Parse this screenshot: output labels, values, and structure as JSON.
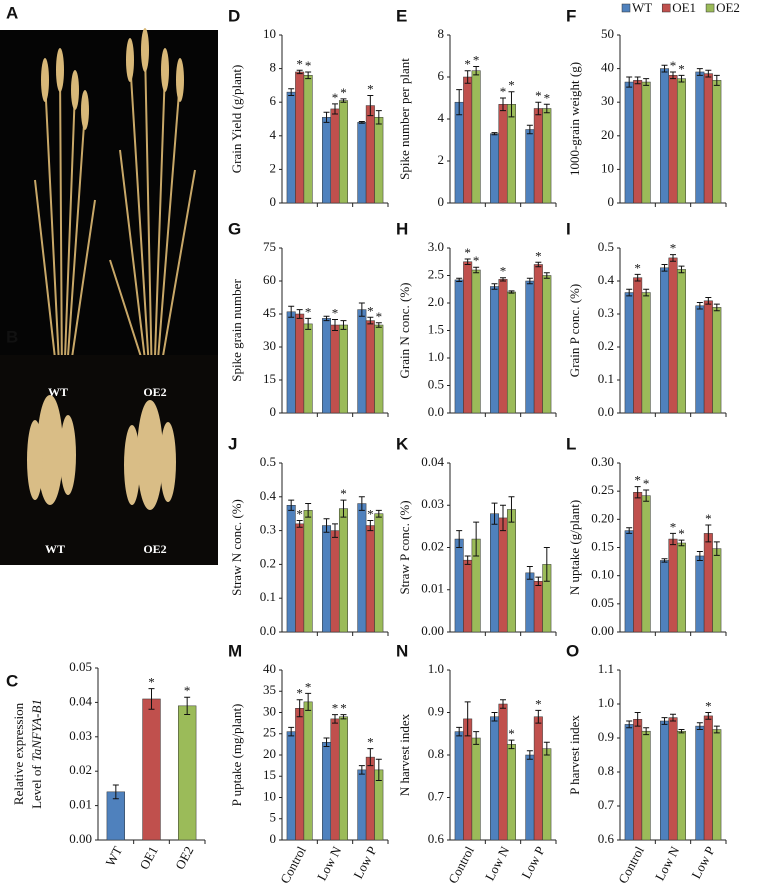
{
  "legend": {
    "position": "top-right",
    "entries": [
      {
        "name": "WT",
        "color": "#4f81bd"
      },
      {
        "name": "OE1",
        "color": "#c0504d"
      },
      {
        "name": "OE2",
        "color": "#9bbb59"
      }
    ]
  },
  "photos": [
    {
      "label": "A",
      "captions": [
        "WT",
        "OE2"
      ]
    },
    {
      "label": "B",
      "captions": [
        "WT",
        "OE2"
      ]
    }
  ],
  "chart_data": [
    {
      "type": "bar",
      "label": "C",
      "ylabel": [
        "Relative expression",
        "Level of",
        "TaNFYA-B1"
      ],
      "categories": [
        "WT",
        "OE1",
        "OE2"
      ],
      "colors": [
        "#4f81bd",
        "#c0504d",
        "#9bbb59"
      ],
      "values": [
        0.014,
        0.041,
        0.039
      ],
      "errors": [
        0.002,
        0.003,
        0.0025
      ],
      "markers": [
        null,
        "*",
        "*"
      ],
      "ylim": [
        0,
        0.05
      ],
      "yticks": [
        {
          "value": 0,
          "label": "0.00"
        },
        0.01,
        0.02,
        0.03,
        0.04,
        0.05
      ]
    },
    {
      "type": "grouped-bar",
      "label": "D",
      "ylabel": "Grain Yield (g/plant)",
      "categories": [
        null,
        null,
        null
      ],
      "ylim": [
        0,
        10
      ],
      "yticks": [
        0,
        2,
        4,
        6,
        8,
        10
      ],
      "series": [
        {
          "values": [
            6.6,
            5.1,
            4.8
          ],
          "errors": [
            0.2,
            0.3,
            0.05
          ],
          "markers": [
            null,
            null,
            null
          ]
        },
        {
          "values": [
            7.8,
            5.6,
            5.8
          ],
          "errors": [
            0.1,
            0.3,
            0.6
          ],
          "markers": [
            "*",
            "*",
            "*"
          ]
        },
        {
          "values": [
            7.6,
            6.1,
            5.1
          ],
          "errors": [
            0.2,
            0.1,
            0.4
          ],
          "markers": [
            "*",
            "*",
            null
          ]
        }
      ]
    },
    {
      "type": "grouped-bar",
      "label": "E",
      "ylabel": "Spike number per plant",
      "categories": [
        null,
        null,
        null
      ],
      "ylim": [
        0,
        8
      ],
      "yticks": [
        0,
        2,
        4,
        6,
        8
      ],
      "series": [
        {
          "values": [
            4.8,
            3.3,
            3.5
          ],
          "errors": [
            0.6,
            0.05,
            0.2
          ],
          "markers": [
            null,
            null,
            null
          ]
        },
        {
          "values": [
            6.0,
            4.7,
            4.5
          ],
          "errors": [
            0.3,
            0.3,
            0.3
          ],
          "markers": [
            "*",
            "*",
            "*"
          ]
        },
        {
          "values": [
            6.3,
            4.7,
            4.5
          ],
          "errors": [
            0.2,
            0.6,
            0.2
          ],
          "markers": [
            "*",
            "*",
            "*"
          ]
        }
      ]
    },
    {
      "type": "grouped-bar",
      "label": "F",
      "ylabel": "1000-grain weight (g)",
      "categories": [
        null,
        null,
        null
      ],
      "ylim": [
        0,
        50
      ],
      "yticks": [
        0,
        10,
        20,
        30,
        40,
        50
      ],
      "series": [
        {
          "values": [
            36,
            40,
            39
          ],
          "errors": [
            1.5,
            1,
            1
          ],
          "markers": [
            null,
            null,
            null
          ]
        },
        {
          "values": [
            36.5,
            38,
            38.5
          ],
          "errors": [
            1,
            1,
            1
          ],
          "markers": [
            null,
            "*",
            null
          ]
        },
        {
          "values": [
            36,
            37,
            36.5
          ],
          "errors": [
            1,
            1,
            1.5
          ],
          "markers": [
            null,
            "*",
            null
          ]
        }
      ]
    },
    {
      "type": "grouped-bar",
      "label": "G",
      "ylabel": "Spike grain number",
      "categories": [
        null,
        null,
        null
      ],
      "ylim": [
        0,
        75
      ],
      "yticks": [
        0,
        15,
        30,
        45,
        60,
        75
      ],
      "series": [
        {
          "values": [
            46,
            43,
            47
          ],
          "errors": [
            2.5,
            1,
            3
          ],
          "markers": [
            null,
            null,
            null
          ]
        },
        {
          "values": [
            45,
            40,
            42
          ],
          "errors": [
            2,
            2.5,
            1.5
          ],
          "markers": [
            null,
            "*",
            "*"
          ]
        },
        {
          "values": [
            40.5,
            40,
            40
          ],
          "errors": [
            2.5,
            2,
            1
          ],
          "markers": [
            "*",
            null,
            "*"
          ]
        }
      ]
    },
    {
      "type": "grouped-bar",
      "label": "H",
      "ylabel": "Grain N conc.  (%)",
      "categories": [
        null,
        null,
        null
      ],
      "ylim": [
        0,
        3
      ],
      "yticks": [
        {
          "value": 0,
          "label": "0.0"
        },
        0.5,
        {
          "value": 1,
          "label": "1.0"
        },
        1.5,
        {
          "value": 2,
          "label": "2.0"
        },
        2.5,
        {
          "value": 3,
          "label": "3.0"
        }
      ],
      "series": [
        {
          "values": [
            2.42,
            2.3,
            2.4
          ],
          "errors": [
            0.03,
            0.05,
            0.05
          ],
          "markers": [
            null,
            null,
            null
          ]
        },
        {
          "values": [
            2.75,
            2.43,
            2.7
          ],
          "errors": [
            0.05,
            0.03,
            0.04
          ],
          "markers": [
            "*",
            "*",
            "*"
          ]
        },
        {
          "values": [
            2.6,
            2.2,
            2.5
          ],
          "errors": [
            0.05,
            0.02,
            0.05
          ],
          "markers": [
            "*",
            null,
            null
          ]
        }
      ]
    },
    {
      "type": "grouped-bar",
      "label": "I",
      "ylabel": "Grain P conc. (%)",
      "categories": [
        null,
        null,
        null
      ],
      "ylim": [
        0,
        0.5
      ],
      "yticks": [
        {
          "value": 0,
          "label": "0.0"
        },
        0.1,
        0.2,
        0.3,
        0.4,
        0.5
      ],
      "series": [
        {
          "values": [
            0.365,
            0.44,
            0.325
          ],
          "errors": [
            0.01,
            0.01,
            0.01
          ],
          "markers": [
            null,
            null,
            null
          ]
        },
        {
          "values": [
            0.41,
            0.47,
            0.34
          ],
          "errors": [
            0.01,
            0.01,
            0.01
          ],
          "markers": [
            "*",
            "*",
            null
          ]
        },
        {
          "values": [
            0.365,
            0.435,
            0.32
          ],
          "errors": [
            0.01,
            0.01,
            0.01
          ],
          "markers": [
            null,
            null,
            null
          ]
        }
      ]
    },
    {
      "type": "grouped-bar",
      "label": "J",
      "ylabel": "Straw N conc. (%)",
      "categories": [
        null,
        null,
        null
      ],
      "ylim": [
        0,
        0.5
      ],
      "yticks": [
        {
          "value": 0,
          "label": "0.0"
        },
        0.1,
        0.2,
        0.3,
        0.4,
        0.5
      ],
      "series": [
        {
          "values": [
            0.375,
            0.315,
            0.38
          ],
          "errors": [
            0.015,
            0.02,
            0.02
          ],
          "markers": [
            null,
            null,
            null
          ]
        },
        {
          "values": [
            0.32,
            0.3,
            0.315
          ],
          "errors": [
            0.01,
            0.02,
            0.015
          ],
          "markers": [
            "*",
            null,
            "*"
          ]
        },
        {
          "values": [
            0.36,
            0.365,
            0.35
          ],
          "errors": [
            0.02,
            0.025,
            0.01
          ],
          "markers": [
            null,
            "*",
            null
          ]
        }
      ]
    },
    {
      "type": "grouped-bar",
      "label": "K",
      "ylabel": "Straw P conc. (%)",
      "categories": [
        null,
        null,
        null
      ],
      "ylim": [
        0,
        0.04
      ],
      "yticks": [
        {
          "value": 0,
          "label": "0.00"
        },
        0.01,
        0.02,
        0.03,
        0.04
      ],
      "series": [
        {
          "values": [
            0.022,
            0.028,
            0.014
          ],
          "errors": [
            0.002,
            0.0025,
            0.0015
          ],
          "markers": [
            null,
            null,
            null
          ]
        },
        {
          "values": [
            0.017,
            0.027,
            0.012
          ],
          "errors": [
            0.001,
            0.003,
            0.001
          ],
          "markers": [
            null,
            null,
            null
          ]
        },
        {
          "values": [
            0.022,
            0.029,
            0.016
          ],
          "errors": [
            0.004,
            0.003,
            0.004
          ],
          "markers": [
            null,
            null,
            null
          ]
        }
      ]
    },
    {
      "type": "grouped-bar",
      "label": "L",
      "ylabel": "N uptake (g/plant)",
      "categories": [
        null,
        null,
        null
      ],
      "ylim": [
        0,
        0.3
      ],
      "yticks": [
        {
          "value": 0,
          "label": "0.00"
        },
        0.05,
        {
          "value": 0.1,
          "label": "0.10"
        },
        0.15,
        {
          "value": 0.2,
          "label": "0.20"
        },
        0.25,
        {
          "value": 0.3,
          "label": "0.30"
        }
      ],
      "series": [
        {
          "values": [
            0.18,
            0.127,
            0.135
          ],
          "errors": [
            0.005,
            0.003,
            0.008
          ],
          "markers": [
            null,
            null,
            null
          ]
        },
        {
          "values": [
            0.248,
            0.165,
            0.175
          ],
          "errors": [
            0.01,
            0.01,
            0.015
          ],
          "markers": [
            "*",
            "*",
            "*"
          ]
        },
        {
          "values": [
            0.242,
            0.158,
            0.148
          ],
          "errors": [
            0.01,
            0.005,
            0.012
          ],
          "markers": [
            "*",
            "*",
            null
          ]
        }
      ]
    },
    {
      "type": "grouped-bar",
      "label": "M",
      "ylabel": "P uptake (mg/plant)",
      "categories": [
        "Control",
        "Low N",
        "Low P"
      ],
      "ylim": [
        0,
        40
      ],
      "yticks": [
        0,
        5,
        10,
        15,
        20,
        25,
        30,
        35,
        40
      ],
      "series": [
        {
          "values": [
            25.5,
            23,
            16.5
          ],
          "errors": [
            1,
            1,
            1
          ],
          "markers": [
            null,
            null,
            null
          ]
        },
        {
          "values": [
            31,
            28.5,
            19.5
          ],
          "errors": [
            2,
            1,
            2
          ],
          "markers": [
            "*",
            "*",
            "*"
          ]
        },
        {
          "values": [
            32.5,
            29,
            16.5
          ],
          "errors": [
            2,
            0.5,
            2.5
          ],
          "markers": [
            "*",
            "*",
            null
          ]
        }
      ]
    },
    {
      "type": "grouped-bar",
      "label": "N",
      "ylabel": "N harvest index",
      "categories": [
        "Control",
        "Low N",
        "Low P"
      ],
      "ylim": [
        0.6,
        1
      ],
      "yticks": [
        0.6,
        0.7,
        0.8,
        0.9,
        {
          "value": 1,
          "label": "1.0"
        }
      ],
      "series": [
        {
          "values": [
            0.855,
            0.89,
            0.8
          ],
          "errors": [
            0.01,
            0.01,
            0.01
          ],
          "markers": [
            null,
            null,
            null
          ]
        },
        {
          "values": [
            0.885,
            0.92,
            0.89
          ],
          "errors": [
            0.04,
            0.01,
            0.015
          ],
          "markers": [
            null,
            null,
            "*"
          ]
        },
        {
          "values": [
            0.84,
            0.825,
            0.815
          ],
          "errors": [
            0.015,
            0.01,
            0.015
          ],
          "markers": [
            null,
            "*",
            null
          ]
        }
      ]
    },
    {
      "type": "grouped-bar",
      "label": "O",
      "ylabel": "P harvest index",
      "categories": [
        "Control",
        "Low N",
        "Low P"
      ],
      "ylim": [
        0.6,
        1.1
      ],
      "yticks": [
        0.6,
        0.7,
        0.8,
        0.9,
        {
          "value": 1,
          "label": "1.0"
        },
        1.1
      ],
      "series": [
        {
          "values": [
            0.94,
            0.95,
            0.935
          ],
          "errors": [
            0.01,
            0.01,
            0.01
          ],
          "markers": [
            null,
            null,
            null
          ]
        },
        {
          "values": [
            0.955,
            0.96,
            0.965
          ],
          "errors": [
            0.02,
            0.01,
            0.01
          ],
          "markers": [
            null,
            null,
            "*"
          ]
        },
        {
          "values": [
            0.92,
            0.92,
            0.925
          ],
          "errors": [
            0.01,
            0.005,
            0.01
          ],
          "markers": [
            null,
            null,
            null
          ]
        }
      ]
    }
  ]
}
